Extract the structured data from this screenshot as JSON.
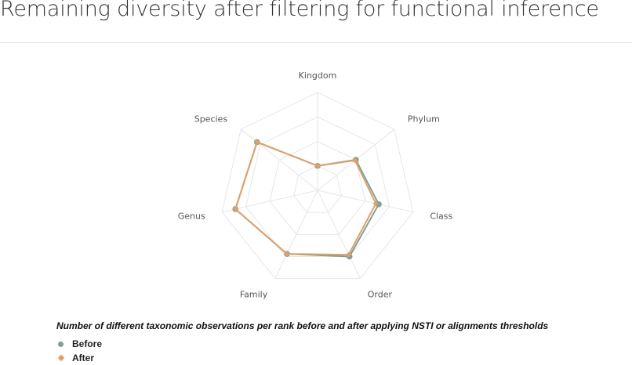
{
  "header": {
    "title": "Remaining diversity after filtering for functional inference"
  },
  "chart_data": {
    "type": "radar",
    "title": "Number of different taxonomic observations per rank before and after applying NSTI or alignments thresholds",
    "axes": [
      "Kingdom",
      "Phylum",
      "Class",
      "Order",
      "Family",
      "Genus",
      "Species"
    ],
    "rlim": [
      0,
      1
    ],
    "grid": true,
    "grid_levels": 4,
    "legend_position": "bottom-left",
    "series": [
      {
        "name": "Before",
        "color": "#7f9f9a",
        "marker": "circle",
        "values": [
          0.25,
          0.5,
          0.64,
          0.75,
          0.72,
          0.86,
          0.79
        ]
      },
      {
        "name": "After",
        "color": "#e0a068",
        "marker": "diamond",
        "values": [
          0.25,
          0.49,
          0.61,
          0.73,
          0.72,
          0.86,
          0.79
        ]
      }
    ]
  }
}
